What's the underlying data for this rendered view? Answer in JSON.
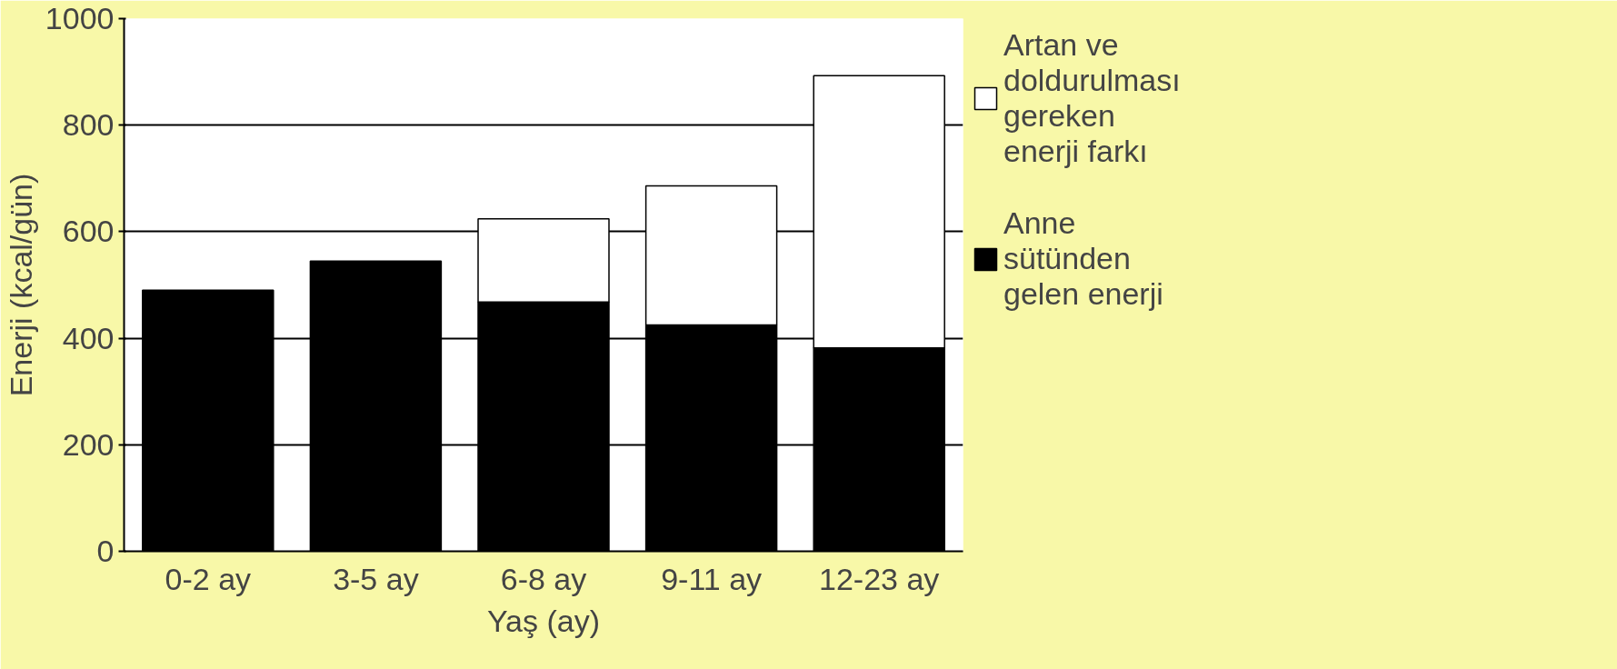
{
  "chart_data": {
    "type": "bar",
    "stacked": true,
    "xlabel": "Yaş (ay)",
    "ylabel": "Enerji (kcal/gün)",
    "categories": [
      "0-2 ay",
      "3-5 ay",
      "6-8 ay",
      "9-11 ay",
      "12-23 ay"
    ],
    "series": [
      {
        "name": "Anne sütünden gelen enerji",
        "color": "#000000",
        "values": [
          490,
          545,
          468,
          425,
          382
        ]
      },
      {
        "name": "Artan ve doldurulması gereken enerji farkı",
        "color": "#ffffff",
        "values": [
          0,
          0,
          156,
          261,
          511
        ]
      }
    ],
    "ylim": [
      0,
      1000
    ],
    "yticks": [
      0,
      200,
      400,
      600,
      800,
      1000
    ],
    "grid": "y",
    "legend": "right"
  }
}
